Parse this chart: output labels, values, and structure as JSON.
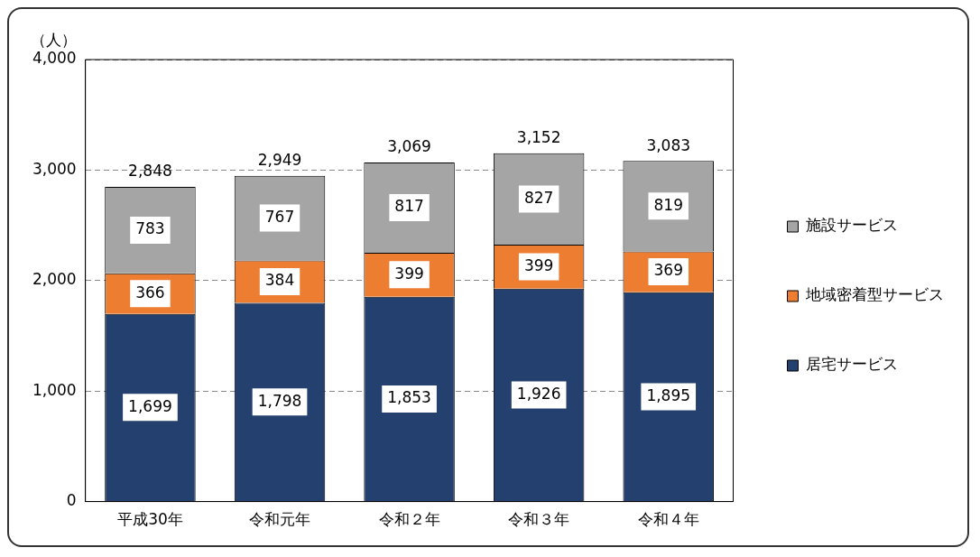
{
  "chart_data": {
    "type": "bar",
    "stacked": true,
    "ylabel": "（人）",
    "categories": [
      "平成30年",
      "令和元年",
      "令和２年",
      "令和３年",
      "令和４年"
    ],
    "series": [
      {
        "name": "居宅サービス",
        "color": "#24406e",
        "values": [
          1699,
          1798,
          1853,
          1926,
          1895
        ],
        "value_labels": [
          "1,699",
          "1,798",
          "1,853",
          "1,926",
          "1,895"
        ]
      },
      {
        "name": "地域密着型サービス",
        "color": "#ed7d31",
        "values": [
          366,
          384,
          399,
          399,
          369
        ],
        "value_labels": [
          "366",
          "384",
          "399",
          "399",
          "369"
        ]
      },
      {
        "name": "施設サービス",
        "color": "#a5a5a5",
        "values": [
          783,
          767,
          817,
          827,
          819
        ],
        "value_labels": [
          "783",
          "767",
          "817",
          "827",
          "819"
        ]
      }
    ],
    "totals": [
      "2,848",
      "2,949",
      "3,069",
      "3,152",
      "3,083"
    ],
    "ylim": [
      0,
      4000
    ],
    "yticks": [
      0,
      {
        "value": 1000,
        "label": "1,000"
      },
      {
        "value": 2000,
        "label": "2,000"
      },
      {
        "value": 3000,
        "label": "3,000"
      },
      {
        "value": 4000,
        "label": "4,000"
      }
    ],
    "grid": "y",
    "legend": "right"
  }
}
